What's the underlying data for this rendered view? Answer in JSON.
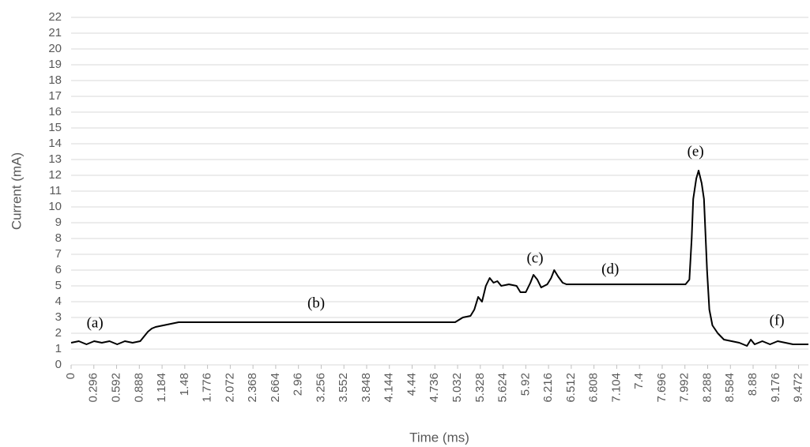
{
  "chart_data": {
    "type": "line",
    "x_label": "Time (ms)",
    "y_label": "Current (mA)",
    "color": "#000000",
    "grid": true,
    "xlim": [
      0,
      9.6
    ],
    "ylim": [
      0,
      22
    ],
    "xticks": [
      0,
      0.296,
      0.592,
      0.888,
      1.184,
      1.48,
      1.776,
      2.072,
      2.368,
      2.664,
      2.96,
      3.256,
      3.552,
      3.848,
      4.144,
      4.44,
      4.736,
      5.032,
      5.328,
      5.624,
      5.92,
      6.216,
      6.512,
      6.808,
      7.104,
      7.4,
      7.696,
      7.992,
      8.288,
      8.584,
      8.88,
      9.176,
      9.472
    ],
    "yticks": [
      0,
      1,
      2,
      3,
      4,
      5,
      6,
      7,
      8,
      9,
      10,
      11,
      12,
      13,
      14,
      15,
      16,
      17,
      18,
      19,
      20,
      21,
      22
    ],
    "x": [
      0,
      0.1,
      0.2,
      0.3,
      0.4,
      0.5,
      0.6,
      0.7,
      0.8,
      0.9,
      0.95,
      1.0,
      1.05,
      1.1,
      1.2,
      1.3,
      1.4,
      2.0,
      3.0,
      4.0,
      5.0,
      5.1,
      5.2,
      5.25,
      5.3,
      5.35,
      5.4,
      5.45,
      5.5,
      5.55,
      5.6,
      5.7,
      5.8,
      5.85,
      5.92,
      5.98,
      6.02,
      6.07,
      6.12,
      6.2,
      6.25,
      6.29,
      6.34,
      6.4,
      6.45,
      7.0,
      7.5,
      8.0,
      8.05,
      8.08,
      8.1,
      8.14,
      8.17,
      8.21,
      8.24,
      8.28,
      8.31,
      8.35,
      8.42,
      8.5,
      8.6,
      8.7,
      8.8,
      8.85,
      8.9,
      9.0,
      9.1,
      9.2,
      9.3,
      9.4,
      9.6
    ],
    "values": [
      1.4,
      1.5,
      1.3,
      1.5,
      1.4,
      1.5,
      1.3,
      1.5,
      1.4,
      1.5,
      1.8,
      2.1,
      2.3,
      2.4,
      2.5,
      2.6,
      2.7,
      2.7,
      2.7,
      2.7,
      2.7,
      3.0,
      3.1,
      3.5,
      4.3,
      4.0,
      5.0,
      5.5,
      5.2,
      5.3,
      5.0,
      5.1,
      5.0,
      4.6,
      4.6,
      5.2,
      5.7,
      5.4,
      4.9,
      5.1,
      5.5,
      6.0,
      5.6,
      5.2,
      5.1,
      5.1,
      5.1,
      5.1,
      5.4,
      8.0,
      10.5,
      11.8,
      12.3,
      11.5,
      10.5,
      6.0,
      3.5,
      2.5,
      2.0,
      1.6,
      1.5,
      1.4,
      1.2,
      1.6,
      1.3,
      1.5,
      1.3,
      1.5,
      1.4,
      1.3,
      1.3
    ],
    "annotations": [
      {
        "text": "(a)",
        "x": 0.31,
        "y": 2.6
      },
      {
        "text": "(b)",
        "x": 3.19,
        "y": 3.85
      },
      {
        "text": "(c)",
        "x": 6.04,
        "y": 6.7
      },
      {
        "text": "(d)",
        "x": 7.02,
        "y": 6.0
      },
      {
        "text": "(e)",
        "x": 8.13,
        "y": 13.45
      },
      {
        "text": "(f)",
        "x": 9.19,
        "y": 2.75
      }
    ]
  }
}
